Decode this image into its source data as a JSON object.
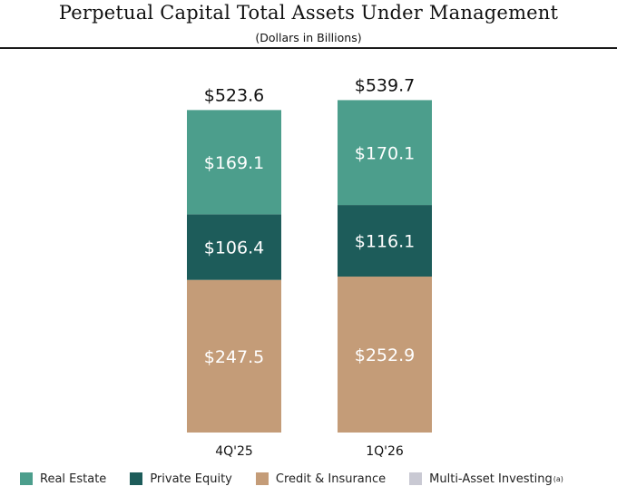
{
  "chart_data": {
    "type": "bar",
    "stacked": true,
    "title": "Perpetual Capital Total Assets Under Management",
    "subtitle": "(Dollars in Billions)",
    "categories": [
      "4Q'25",
      "1Q'26"
    ],
    "totals": [
      "$523.6",
      "$539.7"
    ],
    "series": [
      {
        "name": "Credit & Insurance",
        "color": "#c49c78",
        "values": [
          247.5,
          252.9
        ],
        "labels": [
          "$247.5",
          "$252.9"
        ]
      },
      {
        "name": "Private Equity",
        "color": "#1d5c5a",
        "values": [
          106.4,
          116.1
        ],
        "labels": [
          "$106.4",
          "$116.1"
        ]
      },
      {
        "name": "Real Estate",
        "color": "#4c9e8c",
        "values": [
          169.1,
          170.1
        ],
        "labels": [
          "$169.1",
          "$170.1"
        ]
      }
    ],
    "legend": [
      {
        "name": "Real Estate",
        "color": "#4c9e8c",
        "superscript": ""
      },
      {
        "name": "Private Equity",
        "color": "#1d5c5a",
        "superscript": ""
      },
      {
        "name": "Credit & Insurance",
        "color": "#c49c78",
        "superscript": ""
      },
      {
        "name": "Multi-Asset Investing",
        "color": "#c9c9d3",
        "superscript": "(a)"
      }
    ],
    "legend_position": "bottom"
  }
}
